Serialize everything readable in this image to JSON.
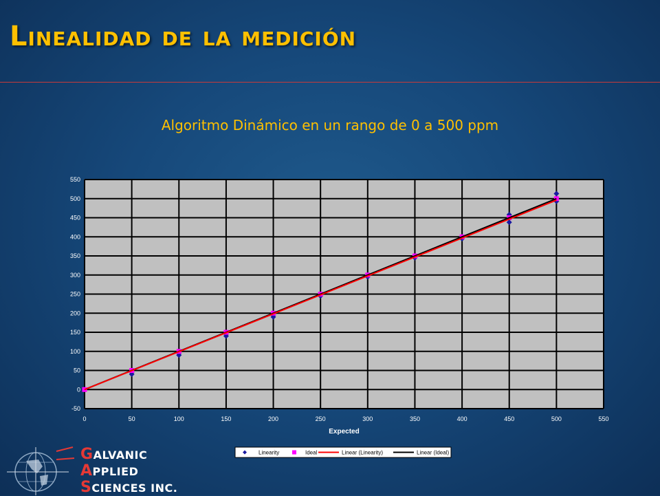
{
  "slide": {
    "title": "Linealidad de la medición",
    "subtitle": "Algoritmo Dinámico en un rango de 0 a 500 ppm"
  },
  "colors": {
    "title": "#ffc000",
    "plot_bg": "#c0c0c0",
    "linearity": "#1a1aa0",
    "ideal": "#ff00ff",
    "fit_linearity": "#ff0000",
    "fit_ideal": "#000000"
  },
  "logo": {
    "icon": "globe-icon",
    "line1_cap": "G",
    "line1_rest": "ALVANIC",
    "line2_cap": "A",
    "line2_rest": "PPLIED",
    "line3_cap": "S",
    "line3_rest": "CIENCES INC."
  },
  "chart_data": {
    "type": "scatter",
    "title": "",
    "xlabel": "Expected",
    "ylabel": "",
    "xlim": [
      0,
      550
    ],
    "ylim": [
      -50,
      550
    ],
    "xticks": [
      0,
      50,
      100,
      150,
      200,
      250,
      300,
      350,
      400,
      450,
      500,
      550
    ],
    "yticks": [
      -50,
      0,
      50,
      100,
      150,
      200,
      250,
      300,
      350,
      400,
      450,
      500,
      550
    ],
    "grid": true,
    "legend_position": "bottom",
    "series": [
      {
        "name": "Linearity",
        "marker": "diamond",
        "points": [
          [
            0,
            0
          ],
          [
            50,
            40
          ],
          [
            50,
            45
          ],
          [
            100,
            90
          ],
          [
            100,
            95
          ],
          [
            150,
            140
          ],
          [
            150,
            145
          ],
          [
            200,
            190
          ],
          [
            200,
            195
          ],
          [
            250,
            245
          ],
          [
            250,
            250
          ],
          [
            300,
            295
          ],
          [
            300,
            300
          ],
          [
            350,
            345
          ],
          [
            350,
            348
          ],
          [
            400,
            395
          ],
          [
            400,
            400
          ],
          [
            450,
            438
          ],
          [
            450,
            458
          ],
          [
            500,
            493
          ],
          [
            500,
            513
          ]
        ]
      },
      {
        "name": "Ideal",
        "marker": "square",
        "points": [
          [
            0,
            0
          ],
          [
            50,
            50
          ],
          [
            100,
            100
          ],
          [
            150,
            150
          ],
          [
            200,
            200
          ],
          [
            250,
            250
          ],
          [
            300,
            300
          ],
          [
            350,
            350
          ],
          [
            400,
            400
          ],
          [
            450,
            450
          ],
          [
            500,
            500
          ]
        ]
      },
      {
        "name": "Linear (Linearity)",
        "type": "line",
        "points": [
          [
            0,
            0
          ],
          [
            500,
            496
          ]
        ]
      },
      {
        "name": "Linear (Ideal)",
        "type": "line",
        "points": [
          [
            0,
            0
          ],
          [
            500,
            500
          ]
        ]
      }
    ]
  }
}
